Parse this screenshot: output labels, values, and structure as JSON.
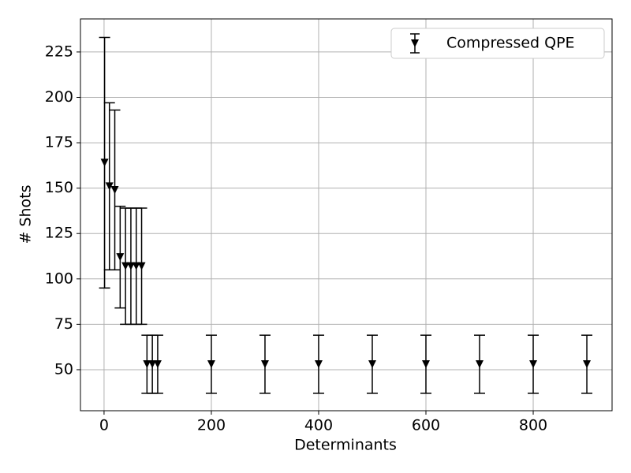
{
  "chart_data": {
    "type": "errorbar",
    "xlabel": "Determinants",
    "ylabel": "# Shots",
    "x": [
      1,
      10,
      20,
      30,
      40,
      50,
      60,
      70,
      80,
      90,
      100,
      200,
      300,
      400,
      500,
      600,
      700,
      800,
      900
    ],
    "series": [
      {
        "name": "Compressed QPE",
        "color": "#000000",
        "values": [
          164,
          151,
          149,
          112,
          107,
          107,
          107,
          107,
          53,
          53,
          53,
          53,
          53,
          53,
          53,
          53,
          53,
          53,
          53
        ],
        "errors": [
          69,
          46,
          44,
          28,
          32,
          32,
          32,
          32,
          16,
          16,
          16,
          16,
          16,
          16,
          16,
          16,
          16,
          16,
          16
        ]
      }
    ],
    "xlim": [
      -44,
      947
    ],
    "ylim": [
      27.4,
      243.2
    ],
    "xticks": [
      0,
      200,
      400,
      600,
      800
    ],
    "yticks": [
      50,
      75,
      100,
      125,
      150,
      175,
      200,
      225
    ],
    "grid": true,
    "legend": "upper right"
  }
}
